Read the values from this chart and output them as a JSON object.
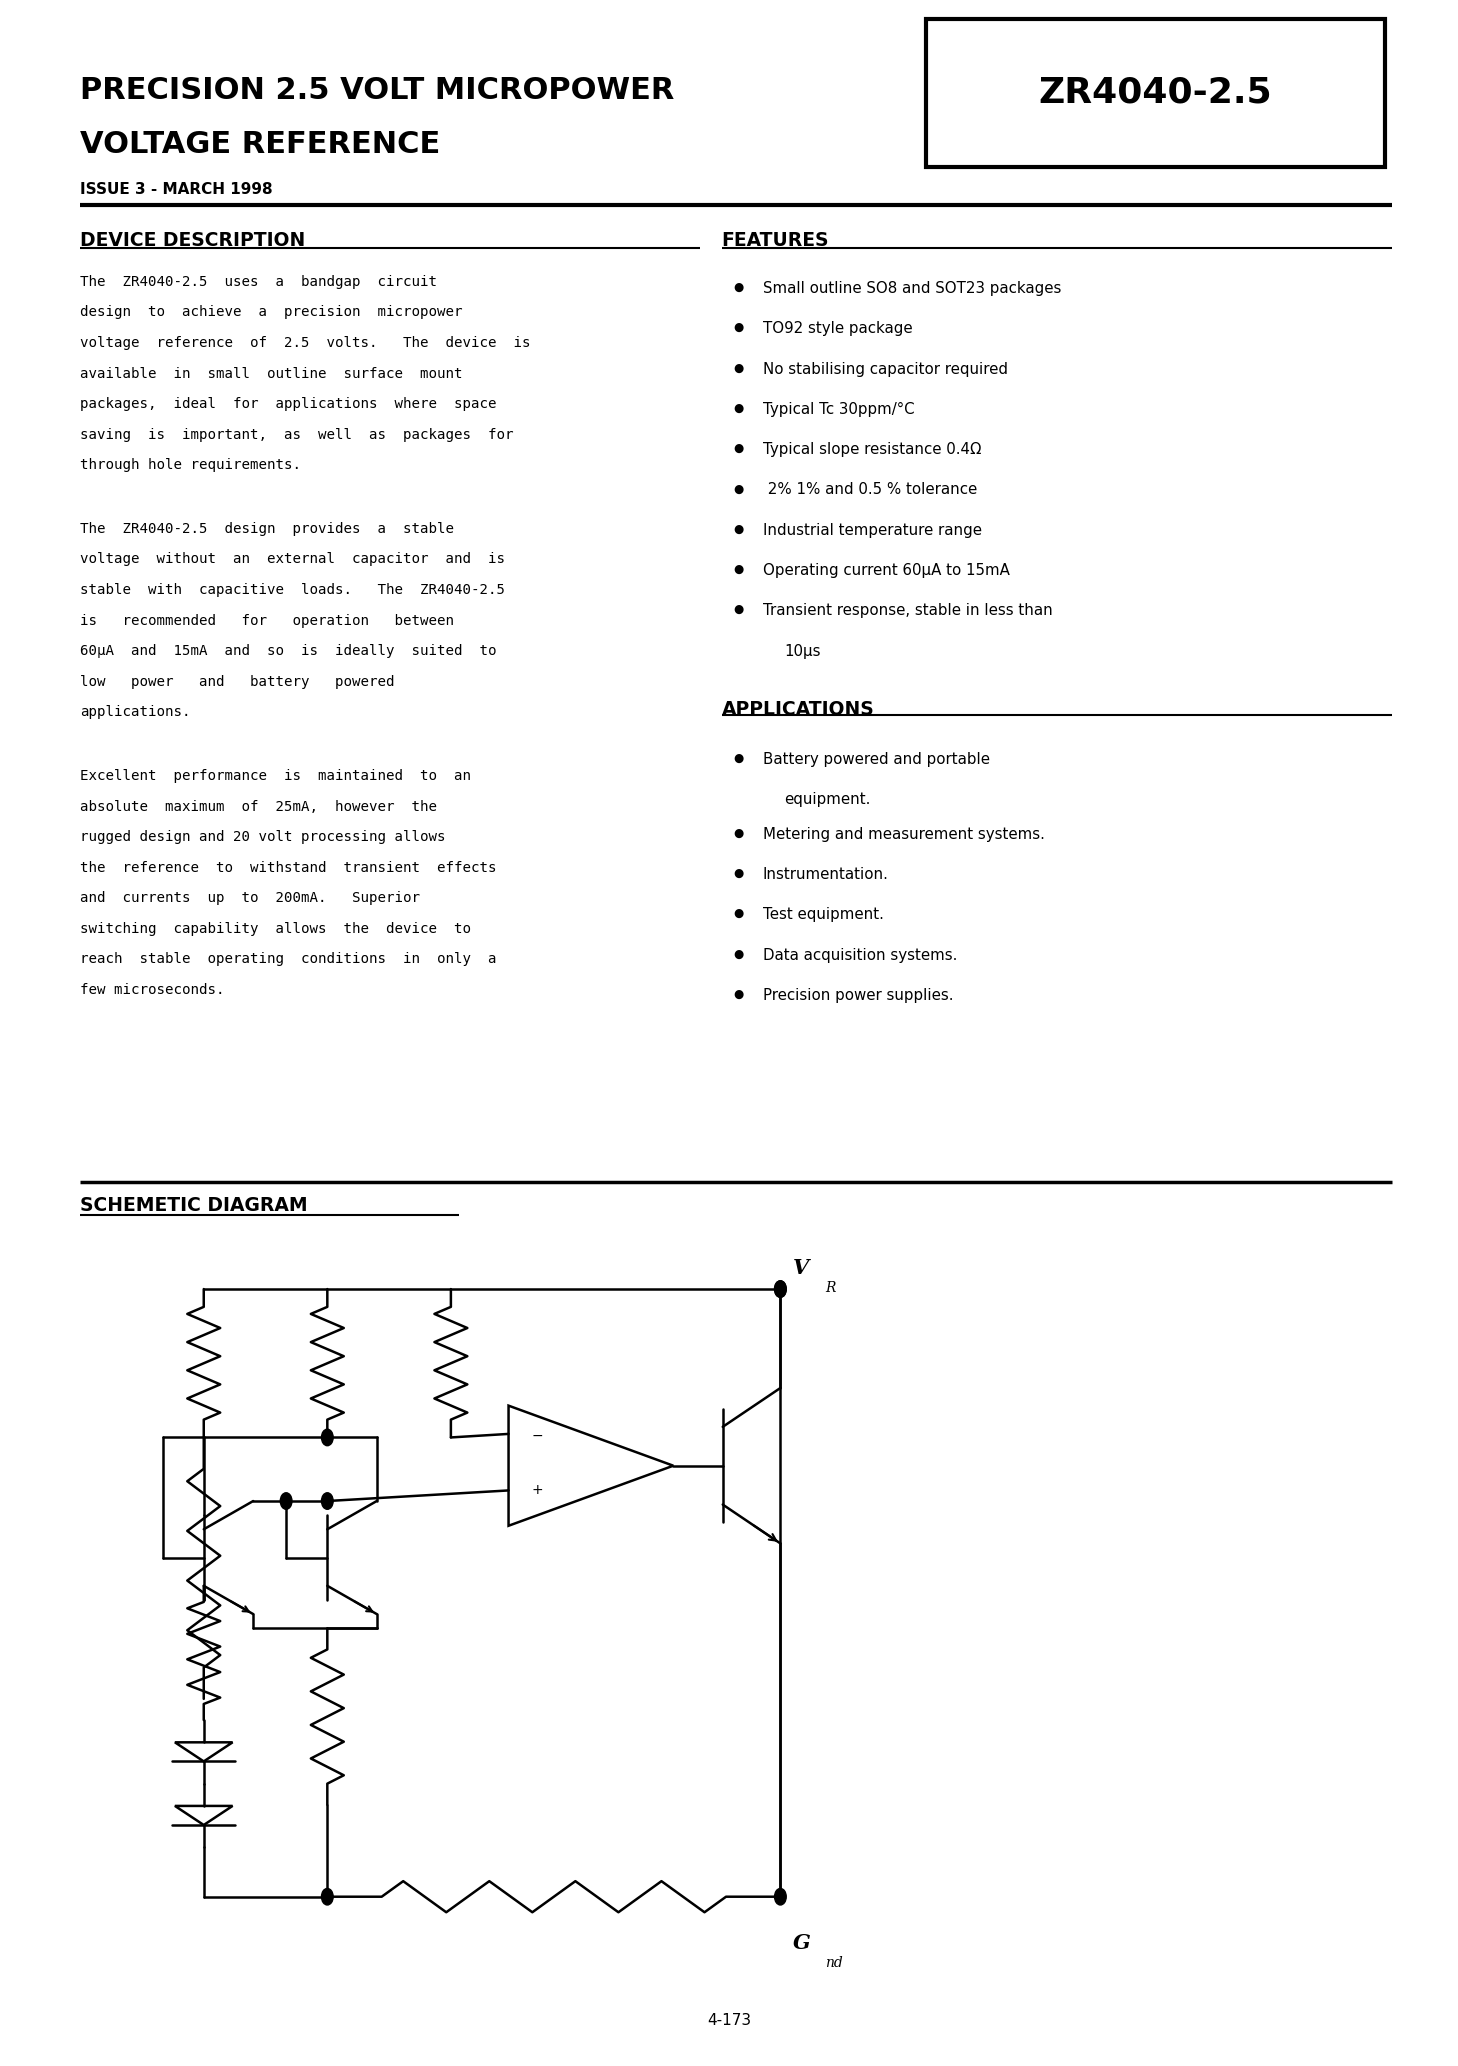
{
  "bg_color": "#ffffff",
  "title_line1": "PRECISION 2.5 VOLT MICROPOWER",
  "title_line2": "VOLTAGE REFERENCE",
  "issue": "ISSUE 3 - MARCH 1998",
  "part_number": "ZR4040-2.5",
  "device_description_title": "DEVICE DESCRIPTION",
  "features_title": "FEATURES",
  "applications_title": "APPLICATIONS",
  "schematic_title": "SCHEMETIC DIAGRAM",
  "device_description_p1": "The  ZR4040-2.5  uses  a  bandgap  circuit\ndesign  to  achieve  a  precision  micropower\nvoltage  reference  of  2.5  volts.   The  device  is\navailable  in  small  outline  surface  mount\npackages,  ideal  for  applications  where  space\nsaving  is  important,  as  well  as  packages  for\nthrough hole requirements.",
  "device_description_p2": "The  ZR4040-2.5  design  provides  a  stable\nvoltage  without  an  external  capacitor  and  is\nstable  with  capacitive  loads.   The  ZR4040-2.5\nis   recommended   for   operation   between\n60μA  and  15mA  and  so  is  ideally  suited  to\nlow   power   and   battery   powered\napplications.",
  "device_description_p3": "Excellent  performance  is  maintained  to  an\nabsolute  maximum  of  25mA,  however  the\nrugged design and 20 volt processing allows\nthe  reference  to  withstand  transient  effects\nand  currents  up  to  200mA.   Superior\nswitching  capability  allows  the  device  to\nreach  stable  operating  conditions  in  only  a\nfew microseconds.",
  "features": [
    "Small outline SO8 and SOT23 packages",
    "TO92 style package",
    "No stabilising capacitor required",
    "Typical Tc 30ppm/°C",
    "Typical slope resistance 0.4Ω",
    " 2% 1% and 0.5 % tolerance",
    "Industrial temperature range",
    "Operating current 60μA to 15mA",
    "Transient response, stable in less than\n10μs"
  ],
  "applications": [
    "Battery powered and portable\nequipment.",
    "Metering and measurement systems.",
    "Instrumentation.",
    "Test equipment.",
    "Data acquisition systems.",
    "Precision power supplies."
  ],
  "page_number": "4-173",
  "ml": 0.055,
  "mr": 0.955,
  "col_mid": 0.485
}
